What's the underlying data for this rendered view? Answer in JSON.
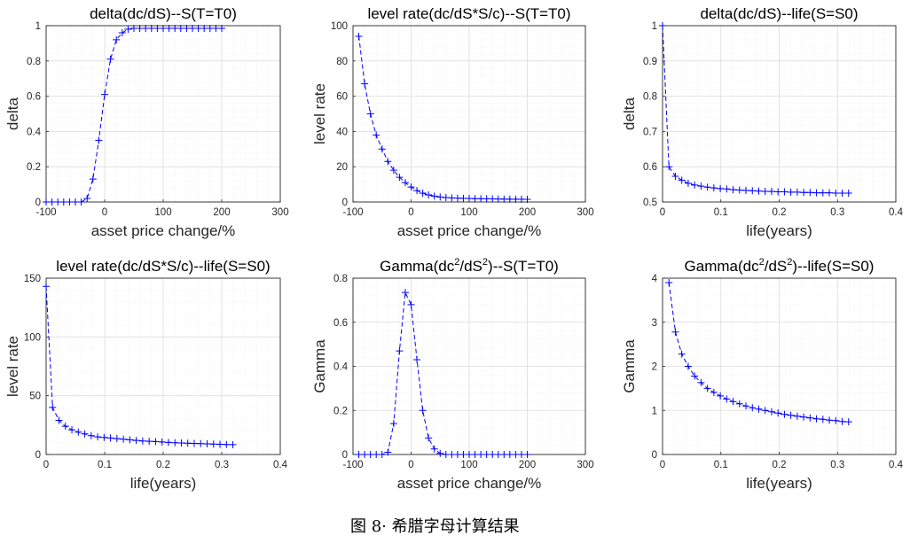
{
  "caption": "图 8· 希腊字母计算结果",
  "colors": {
    "series": "#0000ff",
    "axis": "#262626",
    "grid": "#dcdcdc"
  },
  "chart_data": [
    {
      "type": "line",
      "title_parts": [
        {
          "text": "delta(dc/dS)--S(T=T0)"
        }
      ],
      "xlabel": "asset price change/%",
      "ylabel": "delta",
      "xlim": [
        -100,
        300
      ],
      "ylim": [
        0,
        1
      ],
      "xticks": [
        -100,
        0,
        100,
        200,
        300
      ],
      "xtick_labels": [
        "-100",
        "0",
        "100",
        "200",
        "300"
      ],
      "yticks": [
        0,
        0.2,
        0.4,
        0.6,
        0.8,
        1
      ],
      "ytick_labels": [
        "0",
        "0.2",
        "0.4",
        "0.6",
        "0.8",
        "1"
      ],
      "grid": true,
      "marker": "+",
      "linestyle": "dashed",
      "x": [
        -100,
        -90,
        -80,
        -70,
        -60,
        -50,
        -40,
        -30,
        -20,
        -10,
        0,
        10,
        20,
        30,
        40,
        50,
        60,
        70,
        80,
        90,
        100,
        110,
        120,
        130,
        140,
        150,
        160,
        170,
        180,
        190,
        200
      ],
      "y": [
        0,
        0,
        0,
        0,
        0,
        0,
        0,
        0.02,
        0.13,
        0.35,
        0.61,
        0.81,
        0.92,
        0.96,
        0.98,
        0.985,
        0.985,
        0.985,
        0.985,
        0.985,
        0.985,
        0.985,
        0.985,
        0.985,
        0.985,
        0.985,
        0.985,
        0.985,
        0.985,
        0.985,
        0.985
      ]
    },
    {
      "type": "line",
      "title_parts": [
        {
          "text": "level rate(dc/dS*S/c)--S(T=T0)"
        }
      ],
      "xlabel": "asset price change/%",
      "ylabel": "level rate",
      "xlim": [
        -100,
        300
      ],
      "ylim": [
        0,
        100
      ],
      "xticks": [
        -100,
        0,
        100,
        200,
        300
      ],
      "xtick_labels": [
        "-100",
        "0",
        "100",
        "200",
        "300"
      ],
      "yticks": [
        0,
        20,
        40,
        60,
        80,
        100
      ],
      "ytick_labels": [
        "0",
        "20",
        "40",
        "60",
        "80",
        "100"
      ],
      "grid": true,
      "marker": "+",
      "linestyle": "dashed",
      "x": [
        -90,
        -80,
        -70,
        -60,
        -50,
        -40,
        -30,
        -20,
        -10,
        0,
        10,
        20,
        30,
        40,
        50,
        60,
        70,
        80,
        90,
        100,
        110,
        120,
        130,
        140,
        150,
        160,
        170,
        180,
        190,
        200
      ],
      "y": [
        94,
        67,
        50,
        38,
        30,
        23,
        18,
        14,
        11,
        8.5,
        6.5,
        5,
        4,
        3.3,
        2.8,
        2.5,
        2.3,
        2.2,
        2.1,
        2,
        1.9,
        1.85,
        1.8,
        1.75,
        1.7,
        1.65,
        1.6,
        1.6,
        1.55,
        1.5
      ]
    },
    {
      "type": "line",
      "title_parts": [
        {
          "text": "delta(dc/dS)--life(S=S0)"
        }
      ],
      "xlabel": "life(years)",
      "ylabel": "delta",
      "xlim": [
        0,
        0.4
      ],
      "ylim": [
        0.5,
        1
      ],
      "xticks": [
        0,
        0.1,
        0.2,
        0.3,
        0.4
      ],
      "xtick_labels": [
        "0",
        "0.1",
        "0.2",
        "0.3",
        "0.4"
      ],
      "yticks": [
        0.5,
        0.6,
        0.7,
        0.8,
        0.9,
        1
      ],
      "ytick_labels": [
        "0.5",
        "0.6",
        "0.7",
        "0.8",
        "0.9",
        "1"
      ],
      "grid": true,
      "marker": "+",
      "linestyle": "dashed",
      "x": [
        0,
        0.011,
        0.022,
        0.033,
        0.044,
        0.055,
        0.066,
        0.077,
        0.088,
        0.099,
        0.11,
        0.121,
        0.132,
        0.143,
        0.154,
        0.165,
        0.176,
        0.187,
        0.198,
        0.209,
        0.22,
        0.231,
        0.242,
        0.253,
        0.264,
        0.275,
        0.286,
        0.297,
        0.308,
        0.319
      ],
      "y": [
        1,
        0.6,
        0.573,
        0.562,
        0.553,
        0.548,
        0.545,
        0.542,
        0.54,
        0.538,
        0.537,
        0.535,
        0.534,
        0.533,
        0.532,
        0.531,
        0.53,
        0.53,
        0.529,
        0.529,
        0.528,
        0.528,
        0.527,
        0.527,
        0.526,
        0.526,
        0.526,
        0.525,
        0.525,
        0.525
      ]
    },
    {
      "type": "line",
      "title_parts": [
        {
          "text": "level rate(dc/dS*S/c)--life(S=S0)"
        }
      ],
      "xlabel": "life(years)",
      "ylabel": "level rate",
      "xlim": [
        0,
        0.4
      ],
      "ylim": [
        0,
        150
      ],
      "xticks": [
        0,
        0.1,
        0.2,
        0.3,
        0.4
      ],
      "xtick_labels": [
        "0",
        "0.1",
        "0.2",
        "0.3",
        "0.4"
      ],
      "yticks": [
        0,
        50,
        100,
        150
      ],
      "ytick_labels": [
        "0",
        "50",
        "100",
        "150"
      ],
      "grid": true,
      "marker": "+",
      "linestyle": "dashed",
      "x": [
        0,
        0.011,
        0.022,
        0.033,
        0.044,
        0.055,
        0.066,
        0.077,
        0.088,
        0.099,
        0.11,
        0.121,
        0.132,
        0.143,
        0.154,
        0.165,
        0.176,
        0.187,
        0.198,
        0.209,
        0.22,
        0.231,
        0.242,
        0.253,
        0.264,
        0.275,
        0.286,
        0.297,
        0.308,
        0.319
      ],
      "y": [
        143,
        40,
        29,
        24,
        21,
        19,
        17.5,
        16,
        15,
        14.5,
        14,
        13.5,
        13,
        12.5,
        12,
        11.5,
        11.2,
        11,
        10.6,
        10.3,
        10,
        9.8,
        9.6,
        9.4,
        9.2,
        9,
        8.9,
        8.7,
        8.5,
        8.4
      ]
    },
    {
      "type": "line",
      "title_parts": [
        {
          "text": "Gamma(dc"
        },
        {
          "text": "2",
          "sup": true
        },
        {
          "text": "/dS"
        },
        {
          "text": "2",
          "sup": true
        },
        {
          "text": ")--S(T=T0)"
        }
      ],
      "xlabel": "asset price change/%",
      "ylabel": "Gamma",
      "xlim": [
        -100,
        300
      ],
      "ylim": [
        0,
        0.8
      ],
      "xticks": [
        -100,
        0,
        100,
        200,
        300
      ],
      "xtick_labels": [
        "-100",
        "0",
        "100",
        "200",
        "300"
      ],
      "yticks": [
        0,
        0.2,
        0.4,
        0.6,
        0.8
      ],
      "ytick_labels": [
        "0",
        "0.2",
        "0.4",
        "0.6",
        "0.8"
      ],
      "grid": true,
      "marker": "+",
      "linestyle": "dashed",
      "x": [
        -90,
        -80,
        -70,
        -60,
        -50,
        -40,
        -30,
        -20,
        -10,
        0,
        10,
        20,
        30,
        40,
        50,
        60,
        70,
        80,
        90,
        100,
        110,
        120,
        130,
        140,
        150,
        160,
        170,
        180,
        190,
        200
      ],
      "y": [
        0,
        0,
        0,
        0,
        0,
        0.01,
        0.14,
        0.47,
        0.735,
        0.68,
        0.43,
        0.2,
        0.075,
        0.025,
        0.005,
        0,
        0,
        0,
        0,
        0,
        0,
        0,
        0,
        0,
        0,
        0,
        0,
        0,
        0,
        0
      ]
    },
    {
      "type": "line",
      "title_parts": [
        {
          "text": "Gamma(dc"
        },
        {
          "text": "2",
          "sup": true
        },
        {
          "text": "/dS"
        },
        {
          "text": "2",
          "sup": true
        },
        {
          "text": ")--life(S=S0)"
        }
      ],
      "xlabel": "life(years)",
      "ylabel": "Gamma",
      "xlim": [
        0,
        0.4
      ],
      "ylim": [
        0,
        4
      ],
      "xticks": [
        0,
        0.1,
        0.2,
        0.3,
        0.4
      ],
      "xtick_labels": [
        "0",
        "0.1",
        "0.2",
        "0.3",
        "0.4"
      ],
      "yticks": [
        0,
        1,
        2,
        3,
        4
      ],
      "ytick_labels": [
        "0",
        "1",
        "2",
        "3",
        "4"
      ],
      "grid": true,
      "marker": "+",
      "linestyle": "dashed",
      "x": [
        0.011,
        0.022,
        0.033,
        0.044,
        0.055,
        0.066,
        0.077,
        0.088,
        0.099,
        0.11,
        0.121,
        0.132,
        0.143,
        0.154,
        0.165,
        0.176,
        0.187,
        0.198,
        0.209,
        0.22,
        0.231,
        0.242,
        0.253,
        0.264,
        0.275,
        0.286,
        0.297,
        0.308,
        0.319
      ],
      "y": [
        3.9,
        2.78,
        2.28,
        2.0,
        1.78,
        1.63,
        1.5,
        1.41,
        1.33,
        1.26,
        1.2,
        1.15,
        1.1,
        1.06,
        1.03,
        1.0,
        0.97,
        0.94,
        0.91,
        0.89,
        0.87,
        0.85,
        0.83,
        0.81,
        0.8,
        0.78,
        0.77,
        0.75,
        0.74
      ]
    }
  ]
}
